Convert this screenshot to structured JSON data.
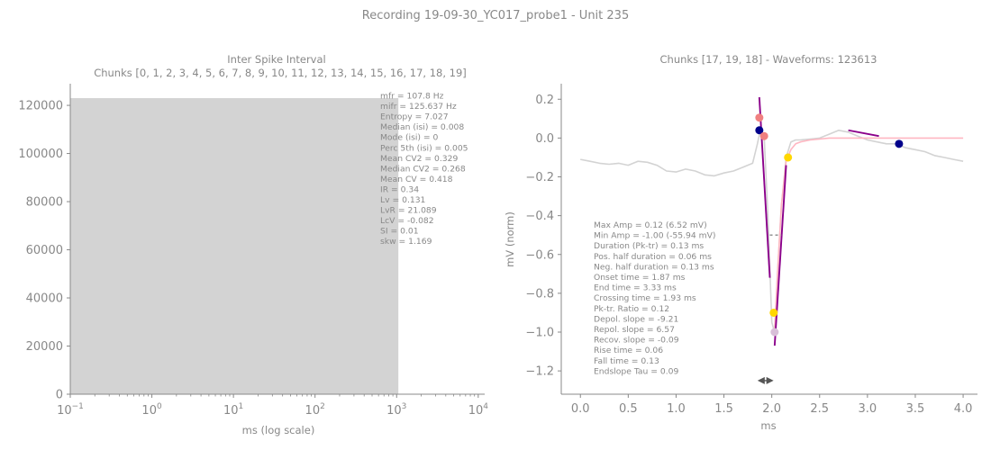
{
  "figure": {
    "title": "Recording 19-09-30_YC017_probe1 - Unit 235"
  },
  "chart_data": [
    {
      "type": "bar",
      "title": "Inter Spike Interval",
      "subtitle": "Chunks [0, 1, 2, 3, 4, 5, 6, 7, 8, 9, 10, 11, 12, 13, 14, 15, 16, 17, 18, 19]",
      "xlabel": "ms (log scale)",
      "ylabel": "",
      "xscale": "log",
      "xlim": [
        0.1,
        12000
      ],
      "ylim": [
        0,
        129000
      ],
      "x_ticks": [
        0.1,
        1,
        10,
        100,
        1000,
        10000
      ],
      "x_tick_labels": [
        {
          "base": "10",
          "exp": "−1"
        },
        {
          "base": "10",
          "exp": "0"
        },
        {
          "base": "10",
          "exp": "1"
        },
        {
          "base": "10",
          "exp": "2"
        },
        {
          "base": "10",
          "exp": "3"
        },
        {
          "base": "10",
          "exp": "4"
        }
      ],
      "y_ticks": [
        0,
        20000,
        40000,
        60000,
        80000,
        100000,
        120000
      ],
      "y_tick_labels": [
        "0",
        "20000",
        "40000",
        "60000",
        "80000",
        "100000",
        "120000"
      ],
      "bars": [
        {
          "x_start": 0.1,
          "x_end": 1050,
          "value": 123000
        }
      ],
      "bar_color": "#d3d3d3",
      "stats": [
        "mfr = 107.8 Hz",
        "mifr = 125.637 Hz",
        "Entropy = 7.027",
        "Median (isi) = 0.008",
        "Mode (isi) = 0",
        "Perc 5th (isi) = 0.005",
        "Mean CV2 = 0.329",
        "Median CV2 = 0.268",
        "Mean CV = 0.418",
        "IR = 0.34",
        "Lv = 0.131",
        "LvR = 21.089",
        "LcV = -0.082",
        "SI = 0.01",
        "skw = 1.169"
      ],
      "grid": false
    },
    {
      "type": "line",
      "title": "Chunks [17, 19, 18] - Waveforms: 123613",
      "xlabel": "ms",
      "ylabel": "mV (norm)",
      "xlim": [
        -0.2,
        4.15
      ],
      "ylim": [
        -1.32,
        0.28
      ],
      "x_ticks": [
        0.0,
        0.5,
        1.0,
        1.5,
        2.0,
        2.5,
        3.0,
        3.5,
        4.0
      ],
      "x_tick_labels": [
        "0.0",
        "0.5",
        "1.0",
        "1.5",
        "2.0",
        "2.5",
        "3.0",
        "3.5",
        "4.0"
      ],
      "y_ticks": [
        0.2,
        0.0,
        -0.2,
        -0.4,
        -0.6,
        -0.8,
        -1.0,
        -1.2
      ],
      "y_tick_labels": [
        "0.2",
        "0.0",
        "−0.2",
        "−0.4",
        "−0.6",
        "−0.8",
        "−1.0",
        "−1.2"
      ],
      "series": [
        {
          "color": "#d3d3d3",
          "x": [
            0.0,
            0.1,
            0.2,
            0.3,
            0.4,
            0.5,
            0.6,
            0.7,
            0.8,
            0.9,
            1.0,
            1.1,
            1.2,
            1.3,
            1.4,
            1.5,
            1.6,
            1.7,
            1.8,
            1.85,
            1.88,
            1.92,
            1.96,
            2.0,
            2.03,
            2.06,
            2.1,
            2.15,
            2.2,
            2.25,
            2.3,
            2.4,
            2.5,
            2.6,
            2.7,
            2.8,
            2.9,
            3.0,
            3.1,
            3.2,
            3.3,
            3.4,
            3.5,
            3.6,
            3.7,
            3.8,
            3.9,
            4.0
          ],
          "y": [
            -0.11,
            -0.12,
            -0.13,
            -0.135,
            -0.13,
            -0.14,
            -0.12,
            -0.125,
            -0.14,
            -0.17,
            -0.175,
            -0.16,
            -0.17,
            -0.19,
            -0.195,
            -0.18,
            -0.17,
            -0.15,
            -0.13,
            -0.03,
            0.04,
            0.01,
            -0.4,
            -0.95,
            -1.0,
            -0.7,
            -0.35,
            -0.1,
            -0.02,
            -0.01,
            -0.01,
            -0.005,
            0.0,
            0.02,
            0.04,
            0.03,
            0.01,
            -0.01,
            -0.02,
            -0.03,
            -0.03,
            -0.05,
            -0.06,
            -0.07,
            -0.09,
            -0.1,
            -0.11,
            -0.12
          ]
        },
        {
          "color": "#ffb6c1",
          "x": [
            2.03,
            2.06,
            2.1,
            2.15,
            2.2,
            2.25,
            2.3,
            2.4,
            2.5,
            2.6,
            2.8,
            3.0,
            3.2,
            3.4,
            3.6,
            3.8,
            4.0
          ],
          "y": [
            -1.0,
            -0.7,
            -0.35,
            -0.12,
            -0.06,
            -0.03,
            -0.02,
            -0.01,
            -0.005,
            0.0,
            0.0,
            0.0,
            0.0,
            0.0,
            0.0,
            0.0,
            0.0
          ]
        }
      ],
      "slope_lines": [
        {
          "x": [
            1.87,
            1.98
          ],
          "y": [
            0.21,
            -0.72
          ],
          "color": "#8b008b"
        },
        {
          "x": [
            2.03,
            2.15
          ],
          "y": [
            -1.07,
            -0.14
          ],
          "color": "#8b008b"
        },
        {
          "x": [
            2.8,
            3.12
          ],
          "y": [
            0.04,
            0.01
          ],
          "color": "#8b008b"
        }
      ],
      "dashed_segments": [
        {
          "x": [
            1.98,
            2.1
          ],
          "y": [
            -0.5,
            -0.5
          ],
          "color": "#888888"
        }
      ],
      "markers": [
        {
          "x": 1.87,
          "y": 0.04,
          "color": "#00008b"
        },
        {
          "x": 1.87,
          "y": 0.105,
          "color": "#f08080"
        },
        {
          "x": 1.92,
          "y": 0.01,
          "color": "#f08080"
        },
        {
          "x": 2.02,
          "y": -0.9,
          "color": "#ffd700"
        },
        {
          "x": 2.03,
          "y": -1.0,
          "color": "#d8bfd8"
        },
        {
          "x": 2.17,
          "y": -0.1,
          "color": "#ffd700"
        },
        {
          "x": 3.33,
          "y": -0.03,
          "color": "#00008b"
        }
      ],
      "arrow": {
        "x": [
          1.87,
          2.0
        ],
        "y": -1.25,
        "color": "#555555"
      },
      "stats": [
        "Max Amp = 0.12 (6.52 mV)",
        "Min Amp = -1.00 (-55.94 mV)",
        "Duration (Pk-tr) = 0.13 ms",
        "Pos. half duration = 0.06 ms",
        "Neg. half duration = 0.13 ms",
        "Onset time = 1.87 ms",
        "End time = 3.33 ms",
        "Crossing time = 1.93 ms",
        "Pk-tr. Ratio = 0.12",
        "Depol. slope = -9.21",
        "Repol. slope = 6.57",
        "Recov. slope = -0.09",
        "Rise time = 0.06",
        "Fall time = 0.13",
        "Endslope Tau = 0.09"
      ],
      "grid": false
    }
  ]
}
